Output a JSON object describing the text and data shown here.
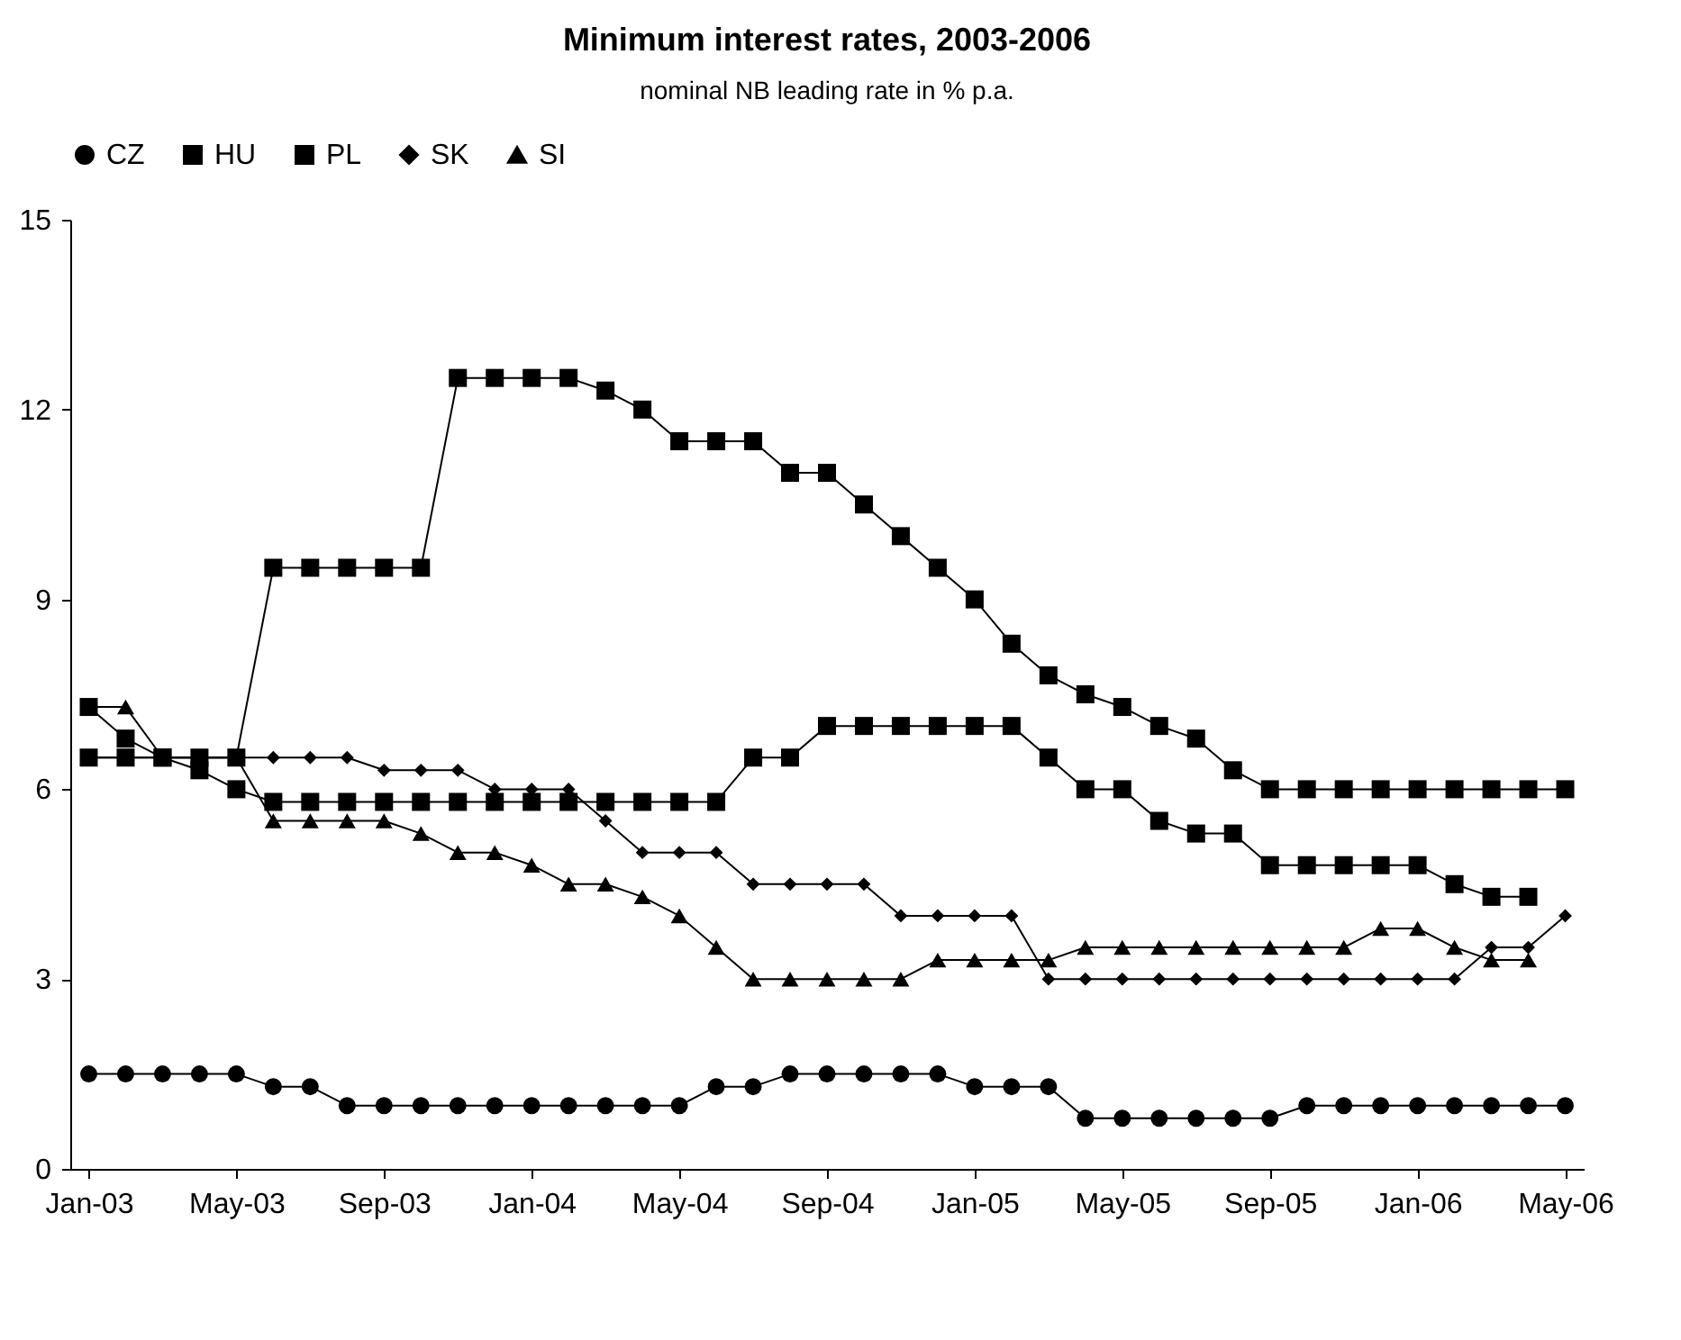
{
  "chart_data": {
    "type": "line",
    "title": "Minimum interest rates, 2003-2006",
    "subtitle": "nominal NB leading rate in % p.a.",
    "categories": [
      "Jan-03",
      null,
      null,
      null,
      "May-03",
      null,
      null,
      null,
      "Sep-03",
      null,
      null,
      null,
      "Jan-04",
      null,
      null,
      null,
      "May-04",
      null,
      null,
      null,
      "Sep-04",
      null,
      null,
      null,
      "Jan-05",
      null,
      null,
      null,
      "May-05",
      null,
      null,
      null,
      "Sep-05",
      null,
      null,
      null,
      "Jan-06",
      null,
      null,
      null,
      "May-06"
    ],
    "series": [
      {
        "name": "CZ",
        "color": "#000000",
        "marker": "circle",
        "values": [
          1.5,
          1.5,
          1.5,
          1.5,
          1.5,
          1.3,
          1.3,
          1.0,
          1.0,
          1.0,
          1.0,
          1.0,
          1.0,
          1.0,
          1.0,
          1.0,
          1.0,
          1.3,
          1.3,
          1.5,
          1.5,
          1.5,
          1.5,
          1.5,
          1.3,
          1.3,
          1.3,
          0.8,
          0.8,
          0.8,
          0.8,
          0.8,
          0.8,
          1.0,
          1.0,
          1.0,
          1.0,
          1.0,
          1.0,
          1.0,
          1.0
        ]
      },
      {
        "name": "HU",
        "color": "#000000",
        "marker": "square",
        "values": [
          6.5,
          6.5,
          6.5,
          6.5,
          6.5,
          9.5,
          9.5,
          9.5,
          9.5,
          9.5,
          12.5,
          12.5,
          12.5,
          12.5,
          12.3,
          12.0,
          11.5,
          11.5,
          11.5,
          11.0,
          11.0,
          10.5,
          10.0,
          9.5,
          9.0,
          8.3,
          7.8,
          7.5,
          7.3,
          7.0,
          6.8,
          6.3,
          6.0,
          6.0,
          6.0,
          6.0,
          6.0,
          6.0,
          6.0,
          6.0,
          6.0
        ]
      },
      {
        "name": "PL",
        "color": "#000000",
        "marker": "square",
        "values": [
          7.3,
          6.8,
          6.5,
          6.3,
          6.0,
          5.8,
          5.8,
          5.8,
          5.8,
          5.8,
          5.8,
          5.8,
          5.8,
          5.8,
          5.8,
          5.8,
          5.8,
          5.8,
          6.5,
          6.5,
          7.0,
          7.0,
          7.0,
          7.0,
          7.0,
          7.0,
          6.5,
          6.0,
          6.0,
          5.5,
          5.3,
          5.3,
          4.8,
          4.8,
          4.8,
          4.8,
          4.8,
          4.5,
          4.3,
          4.3,
          null
        ]
      },
      {
        "name": "SK",
        "color": "#000000",
        "marker": "diamond",
        "values": [
          6.5,
          6.5,
          6.5,
          6.5,
          6.5,
          6.5,
          6.5,
          6.5,
          6.3,
          6.3,
          6.3,
          6.0,
          6.0,
          6.0,
          5.5,
          5.0,
          5.0,
          5.0,
          4.5,
          4.5,
          4.5,
          4.5,
          4.0,
          4.0,
          4.0,
          4.0,
          3.0,
          3.0,
          3.0,
          3.0,
          3.0,
          3.0,
          3.0,
          3.0,
          3.0,
          3.0,
          3.0,
          3.0,
          3.5,
          3.5,
          4.0
        ]
      },
      {
        "name": "SI",
        "color": "#000000",
        "marker": "triangle",
        "values": [
          7.3,
          7.3,
          6.5,
          6.5,
          6.5,
          5.5,
          5.5,
          5.5,
          5.5,
          5.3,
          5.0,
          5.0,
          4.8,
          4.5,
          4.5,
          4.3,
          4.0,
          3.5,
          3.0,
          3.0,
          3.0,
          3.0,
          3.0,
          3.3,
          3.3,
          3.3,
          3.3,
          3.5,
          3.5,
          3.5,
          3.5,
          3.5,
          3.5,
          3.5,
          3.5,
          3.8,
          3.8,
          3.5,
          3.3,
          3.3,
          null
        ]
      }
    ],
    "ylim": [
      0,
      15
    ],
    "yticks": [
      0,
      3,
      6,
      9,
      12,
      15
    ],
    "grid": false,
    "legend": "top",
    "line_style": "solid"
  }
}
